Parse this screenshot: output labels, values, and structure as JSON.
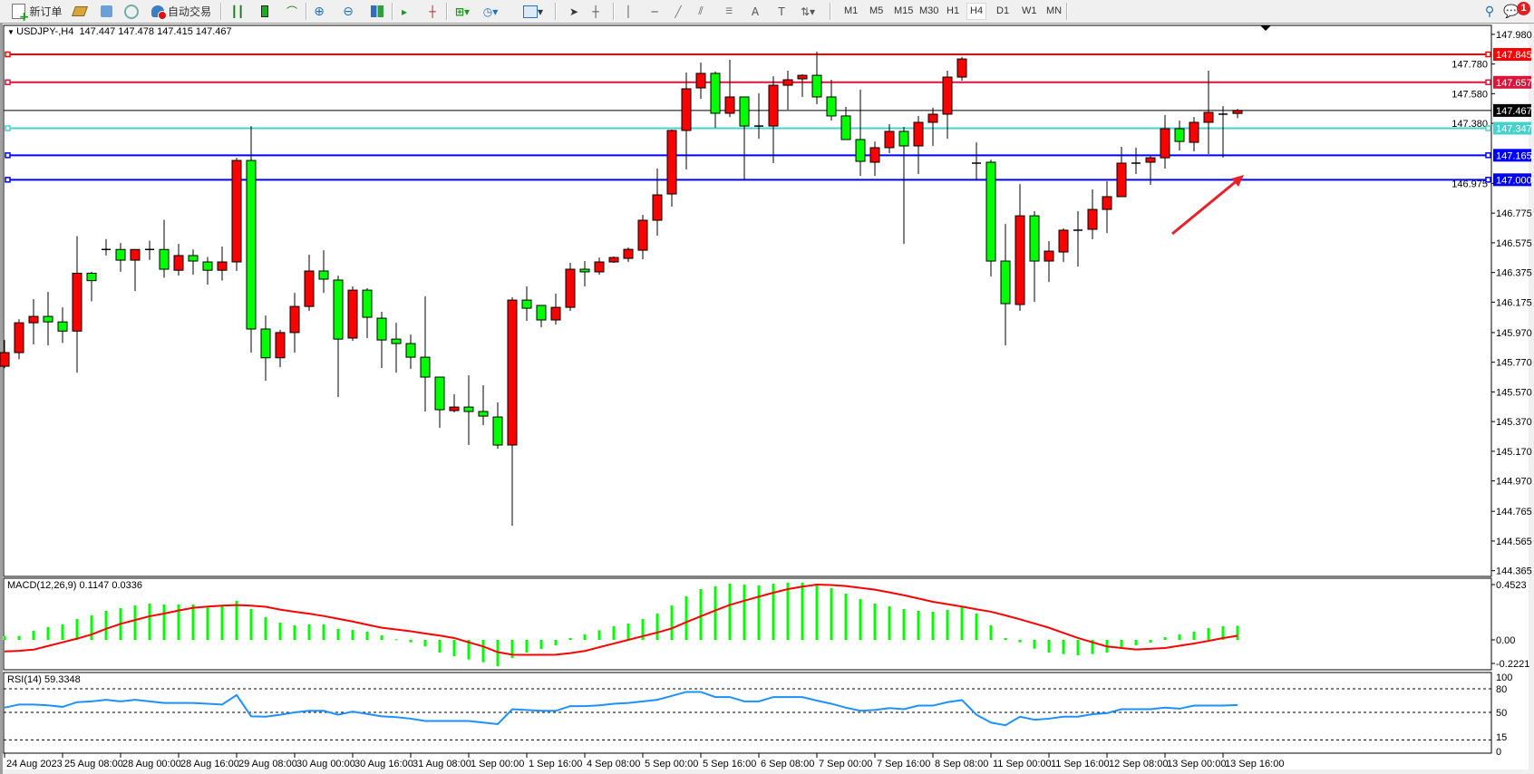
{
  "toolbar": {
    "new_order_label": "新订单",
    "auto_trading_label": "自动交易",
    "timeframes": [
      "M1",
      "M5",
      "M15",
      "M30",
      "H1",
      "H4",
      "D1",
      "W1",
      "MN"
    ],
    "active_timeframe": "H4",
    "notification_count": "1",
    "icons": [
      "new-order-icon",
      "gold-icon",
      "market-watch-icon",
      "signals-icon",
      "auto-trading-icon",
      "bar-chart-icon",
      "candlestick-icon",
      "line-chart-icon",
      "zoom-in-icon",
      "zoom-out-icon",
      "tile-windows-icon",
      "chart-shift-icon",
      "autoscroll-icon",
      "new-chart-icon",
      "periods-icon",
      "indicators-icon",
      "cursor-icon",
      "crosshair-icon",
      "vertical-line-icon",
      "horizontal-line-icon",
      "trendline-icon",
      "equidistant-channel-icon",
      "fibonacci-icon",
      "text-icon",
      "text-label-icon",
      "arrows-icon",
      "search-icon",
      "notifications-icon"
    ]
  },
  "chart_data": {
    "type": "candlestick",
    "symbol_header": "USDJPY-,H4",
    "ohlc_header": "147.447 147.478 147.415 147.467",
    "colors": {
      "bull": "#ff0000",
      "bear": "#00ff00",
      "wick": "#000000",
      "arrow": "#e8202a"
    },
    "y_ticks": [
      "147.980",
      "147.780",
      "147.580",
      "147.380",
      "146.975",
      "146.775",
      "146.575",
      "146.375",
      "146.175",
      "145.970",
      "145.770",
      "145.570",
      "145.370",
      "145.170",
      "144.970",
      "144.765",
      "144.565",
      "144.365"
    ],
    "x_tick_labels": [
      "24 Aug 2023",
      "25 Aug 08:00",
      "28 Aug 00:00",
      "28 Aug 16:00",
      "29 Aug 08:00",
      "30 Aug 00:00",
      "30 Aug 16:00",
      "31 Aug 08:00",
      "1 Sep 00:00",
      "1 Sep 16:00",
      "4 Sep 08:00",
      "5 Sep 00:00",
      "5 Sep 16:00",
      "6 Sep 08:00",
      "7 Sep 00:00",
      "7 Sep 16:00",
      "8 Sep 08:00",
      "11 Sep 00:00",
      "11 Sep 16:00",
      "12 Sep 08:00",
      "13 Sep 00:00",
      "13 Sep 16:00"
    ],
    "candles_ohlc": [
      [
        145.743,
        145.92,
        145.73,
        145.835
      ],
      [
        145.835,
        146.06,
        145.79,
        146.036
      ],
      [
        146.036,
        146.195,
        145.89,
        146.079
      ],
      [
        146.079,
        146.244,
        145.884,
        146.042
      ],
      [
        146.042,
        146.14,
        145.9,
        145.98
      ],
      [
        145.98,
        146.62,
        145.7,
        146.37
      ],
      [
        146.37,
        146.38,
        146.18,
        146.32
      ],
      [
        146.53,
        146.6,
        146.49,
        146.53
      ],
      [
        146.53,
        146.574,
        146.38,
        146.458
      ],
      [
        146.458,
        146.53,
        146.25,
        146.53
      ],
      [
        146.53,
        146.59,
        146.46,
        146.53
      ],
      [
        146.53,
        146.73,
        146.34,
        146.397
      ],
      [
        146.39,
        146.568,
        146.354,
        146.489
      ],
      [
        146.489,
        146.53,
        146.36,
        146.452
      ],
      [
        146.446,
        146.48,
        146.293,
        146.39
      ],
      [
        146.39,
        146.55,
        146.32,
        146.446
      ],
      [
        146.446,
        147.148,
        146.385,
        147.13
      ],
      [
        147.13,
        147.362,
        145.835,
        145.994
      ],
      [
        145.994,
        146.085,
        145.645,
        145.8
      ],
      [
        145.8,
        145.988,
        145.737,
        145.97
      ],
      [
        145.97,
        146.238,
        145.835,
        146.146
      ],
      [
        146.146,
        146.495,
        146.116,
        146.385
      ],
      [
        146.385,
        146.525,
        146.238,
        146.33
      ],
      [
        146.324,
        146.354,
        145.535,
        145.926
      ],
      [
        145.933,
        146.281,
        145.914,
        146.256
      ],
      [
        146.256,
        146.269,
        145.933,
        146.073
      ],
      [
        146.067,
        146.11,
        145.731,
        145.92
      ],
      [
        145.926,
        146.036,
        145.7,
        145.896
      ],
      [
        145.896,
        145.957,
        145.725,
        145.804
      ],
      [
        145.804,
        146.214,
        145.438,
        145.67
      ],
      [
        145.67,
        145.67,
        145.328,
        145.45
      ],
      [
        145.444,
        145.554,
        145.432,
        145.468
      ],
      [
        145.468,
        145.682,
        145.212,
        145.438
      ],
      [
        145.438,
        145.615,
        145.346,
        145.407
      ],
      [
        145.401,
        145.499,
        145.187,
        145.212
      ],
      [
        145.212,
        146.208,
        144.668,
        146.189
      ],
      [
        146.189,
        146.281,
        146.049,
        146.134
      ],
      [
        146.153,
        146.153,
        146.006,
        146.055
      ],
      [
        146.055,
        146.232,
        146.024,
        146.14
      ],
      [
        146.14,
        146.44,
        146.116,
        146.397
      ],
      [
        146.397,
        146.452,
        146.281,
        146.379
      ],
      [
        146.379,
        146.476,
        146.36,
        146.446
      ],
      [
        146.446,
        146.483,
        146.44,
        146.476
      ],
      [
        146.47,
        146.544,
        146.446,
        146.531
      ],
      [
        146.525,
        146.764,
        146.464,
        146.727
      ],
      [
        146.727,
        147.075,
        146.623,
        146.898
      ],
      [
        146.904,
        147.338,
        146.819,
        147.332
      ],
      [
        147.332,
        147.723,
        147.069,
        147.613
      ],
      [
        147.619,
        147.79,
        147.546,
        147.717
      ],
      [
        147.717,
        147.729,
        147.35,
        147.448
      ],
      [
        147.448,
        147.808,
        147.423,
        147.558
      ],
      [
        147.558,
        147.558,
        147.002,
        147.362
      ],
      [
        147.362,
        147.582,
        147.277,
        147.362
      ],
      [
        147.362,
        147.698,
        147.112,
        147.637
      ],
      [
        147.637,
        147.735,
        147.472,
        147.674
      ],
      [
        147.68,
        147.711,
        147.558,
        147.704
      ],
      [
        147.704,
        147.863,
        147.509,
        147.558
      ],
      [
        147.558,
        147.674,
        147.399,
        147.43
      ],
      [
        147.43,
        147.491,
        147.271,
        147.271
      ],
      [
        147.271,
        147.607,
        147.026,
        147.124
      ],
      [
        147.118,
        147.258,
        147.026,
        147.216
      ],
      [
        147.216,
        147.375,
        147.179,
        147.326
      ],
      [
        147.326,
        147.356,
        146.568,
        147.228
      ],
      [
        147.228,
        147.43,
        147.039,
        147.387
      ],
      [
        147.387,
        147.485,
        147.228,
        147.442
      ],
      [
        147.442,
        147.735,
        147.277,
        147.692
      ],
      [
        147.692,
        147.827,
        147.668,
        147.814
      ],
      [
        147.112,
        147.252,
        147.002,
        147.112
      ],
      [
        147.118,
        147.136,
        146.348,
        146.452
      ],
      [
        146.452,
        146.702,
        145.884,
        146.165
      ],
      [
        146.159,
        146.971,
        146.116,
        146.757
      ],
      [
        146.757,
        146.788,
        146.177,
        146.452
      ],
      [
        146.452,
        146.586,
        146.311,
        146.519
      ],
      [
        146.513,
        146.672,
        146.446,
        146.66
      ],
      [
        146.66,
        146.788,
        146.415,
        146.66
      ],
      [
        146.666,
        146.935,
        146.599,
        146.8
      ],
      [
        146.8,
        146.99,
        146.641,
        146.886
      ],
      [
        146.886,
        147.222,
        146.886,
        147.112
      ],
      [
        147.112,
        147.216,
        147.039,
        147.112
      ],
      [
        147.118,
        147.161,
        146.965,
        147.148
      ],
      [
        147.148,
        147.436,
        147.075,
        147.344
      ],
      [
        147.344,
        147.399,
        147.197,
        147.258
      ],
      [
        147.252,
        147.423,
        147.191,
        147.387
      ],
      [
        147.387,
        147.735,
        147.173,
        147.454
      ],
      [
        147.442,
        147.497,
        147.149,
        147.442
      ],
      [
        147.447,
        147.478,
        147.415,
        147.467
      ]
    ],
    "horizontal_lines": [
      {
        "price": "147.845",
        "color": "#ff0000"
      },
      {
        "price": "147.657",
        "color": "#dc143c"
      },
      {
        "price": "147.347",
        "color": "#48d1cc"
      },
      {
        "price": "147.165",
        "color": "#0000ff"
      },
      {
        "price": "147.000",
        "color": "#0000ff"
      }
    ],
    "current_price": "147.467",
    "annotation": {
      "type": "arrow",
      "direction": "up-right",
      "color": "#e8202a"
    },
    "macd": {
      "label": "MACD(12,26,9) 0.1147 0.0336",
      "y_ticks": [
        "0.4523",
        "0.00",
        "-0.2221"
      ],
      "histogram_color": "#00ff00",
      "signal_color": "#ff0000",
      "histogram": [
        0.03,
        0.032,
        0.074,
        0.104,
        0.126,
        0.17,
        0.2,
        0.237,
        0.259,
        0.281,
        0.296,
        0.289,
        0.289,
        0.289,
        0.274,
        0.274,
        0.319,
        0.252,
        0.185,
        0.141,
        0.119,
        0.126,
        0.126,
        0.089,
        0.081,
        0.067,
        0.037,
        0.005,
        -0.02,
        -0.054,
        -0.104,
        -0.133,
        -0.16,
        -0.183,
        -0.215,
        -0.148,
        -0.104,
        -0.074,
        -0.044,
        0.015,
        0.044,
        0.079,
        0.111,
        0.133,
        0.17,
        0.215,
        0.281,
        0.356,
        0.415,
        0.437,
        0.459,
        0.452,
        0.444,
        0.459,
        0.467,
        0.467,
        0.444,
        0.422,
        0.378,
        0.333,
        0.296,
        0.274,
        0.252,
        0.237,
        0.23,
        0.244,
        0.274,
        0.215,
        0.119,
        0.015,
        -0.02,
        -0.072,
        -0.104,
        -0.116,
        -0.126,
        -0.116,
        -0.104,
        -0.074,
        -0.044,
        -0.022,
        0.022,
        0.044,
        0.067,
        0.096,
        0.111,
        0.1147
      ],
      "signal": [
        -0.094,
        -0.09,
        -0.08,
        -0.05,
        -0.02,
        0.01,
        0.044,
        0.09,
        0.131,
        0.162,
        0.193,
        0.215,
        0.24,
        0.262,
        0.272,
        0.28,
        0.284,
        0.28,
        0.27,
        0.247,
        0.23,
        0.214,
        0.195,
        0.172,
        0.15,
        0.124,
        0.099,
        0.085,
        0.07,
        0.052,
        0.035,
        0.015,
        -0.02,
        -0.054,
        -0.1,
        -0.121,
        -0.122,
        -0.122,
        -0.121,
        -0.108,
        -0.091,
        -0.06,
        -0.03,
        0.0,
        0.03,
        0.06,
        0.094,
        0.145,
        0.193,
        0.24,
        0.286,
        0.32,
        0.353,
        0.385,
        0.415,
        0.435,
        0.452,
        0.448,
        0.44,
        0.425,
        0.41,
        0.388,
        0.365,
        0.338,
        0.311,
        0.292,
        0.272,
        0.25,
        0.23,
        0.2,
        0.168,
        0.134,
        0.099,
        0.057,
        0.015,
        -0.02,
        -0.054,
        -0.067,
        -0.079,
        -0.073,
        -0.067,
        -0.048,
        -0.03,
        -0.008,
        0.015,
        0.0336
      ]
    },
    "rsi": {
      "label": "RSI(14) 59.3348",
      "y_ticks": [
        "100",
        "80",
        "50",
        "15",
        "0"
      ],
      "levels": [
        80,
        50,
        15
      ],
      "line_color": "#1e90ff",
      "values": [
        56,
        60,
        60,
        59,
        57,
        63,
        64,
        66,
        64,
        66,
        64,
        62,
        62,
        62,
        61,
        60,
        72,
        45,
        44.5,
        47,
        50,
        52,
        52,
        47,
        51,
        48,
        45,
        44,
        42,
        39,
        39,
        39,
        39,
        37,
        35,
        54,
        53,
        52,
        52,
        58,
        58,
        59,
        61,
        62,
        64,
        66,
        71,
        76,
        76,
        69.5,
        69.5,
        64,
        64,
        69.5,
        69.5,
        69.5,
        65,
        61,
        56,
        52,
        53,
        55.5,
        54,
        58.6,
        58.6,
        63,
        65.6,
        47,
        37,
        33.6,
        44.5,
        40.6,
        42,
        44.5,
        44.5,
        47.7,
        49,
        54,
        54,
        54,
        56,
        54.7,
        58.6,
        58.6,
        58.6,
        59.33
      ]
    }
  }
}
